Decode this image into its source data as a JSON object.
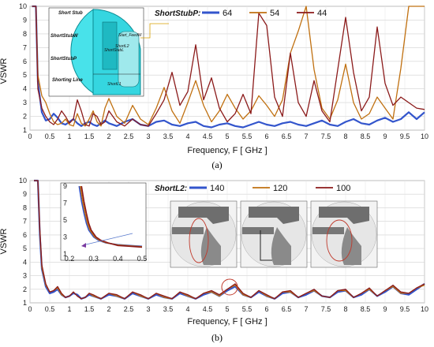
{
  "panels": [
    {
      "label": "(a)",
      "xlabel": "Frequency, F [ GHz ]",
      "ylabel": "VSWR",
      "legend_title": "ShortStubP:",
      "inset_labels": [
        "Short Stub",
        "ShortStubW",
        "ShortStubP",
        "Shorting Line",
        "ShortStubL",
        "ShortL1",
        "ShortL2",
        "Start_FeedW"
      ]
    },
    {
      "label": "(b)",
      "xlabel": "Frequency, F [ GHz ]",
      "ylabel": "VSWR",
      "legend_title": "ShortL2:"
    }
  ],
  "chart_data": [
    {
      "type": "line",
      "xlabel": "Frequency, F [ GHz ]",
      "ylabel": "VSWR",
      "xlim": [
        0,
        10
      ],
      "ylim": [
        1,
        10
      ],
      "x_ticks": [
        "0",
        "0.5",
        "1",
        "1.5",
        "2",
        "2.5",
        "3",
        "3.5",
        "4",
        "4.5",
        "5",
        "5.5",
        "6",
        "6.5",
        "7",
        "7.5",
        "8",
        "8.5",
        "9",
        "9.5",
        "10"
      ],
      "y_ticks": [
        "1",
        "2",
        "3",
        "4",
        "5",
        "6",
        "7",
        "8",
        "9",
        "10"
      ],
      "legend_title": "ShortStubP:",
      "legend_position": "top",
      "series": [
        {
          "name": "64",
          "color": "#3355cc",
          "x": [
            0.05,
            0.15,
            0.2,
            0.3,
            0.4,
            0.5,
            0.6,
            0.7,
            0.8,
            0.9,
            1.0,
            1.1,
            1.2,
            1.3,
            1.4,
            1.5,
            1.6,
            1.7,
            1.8,
            1.9,
            2.0,
            2.2,
            2.4,
            2.6,
            2.8,
            3.0,
            3.2,
            3.4,
            3.6,
            3.8,
            4.0,
            4.2,
            4.4,
            4.6,
            4.8,
            5.0,
            5.2,
            5.4,
            5.6,
            5.8,
            6.0,
            6.2,
            6.4,
            6.6,
            6.8,
            7.0,
            7.2,
            7.4,
            7.6,
            7.8,
            8.0,
            8.2,
            8.4,
            8.6,
            8.8,
            9.0,
            9.2,
            9.4,
            9.6,
            9.8,
            10.0
          ],
          "y": [
            10,
            10,
            4.5,
            2.3,
            1.7,
            1.8,
            2.2,
            1.9,
            1.5,
            1.4,
            1.6,
            1.8,
            1.5,
            1.3,
            1.5,
            1.6,
            1.4,
            1.3,
            1.5,
            1.7,
            1.5,
            1.3,
            1.6,
            1.8,
            1.4,
            1.3,
            1.6,
            1.7,
            1.4,
            1.3,
            1.5,
            1.6,
            1.3,
            1.2,
            1.4,
            1.5,
            1.3,
            1.2,
            1.4,
            1.6,
            1.4,
            1.3,
            1.5,
            1.6,
            1.4,
            1.3,
            1.5,
            1.7,
            1.4,
            1.3,
            1.6,
            1.8,
            1.5,
            1.4,
            1.7,
            1.9,
            1.6,
            1.8,
            2.3,
            1.8,
            2.3
          ]
        },
        {
          "name": "54",
          "color": "#c07010",
          "x": [
            0.05,
            0.15,
            0.2,
            0.3,
            0.4,
            0.5,
            0.6,
            0.7,
            0.8,
            0.9,
            1.0,
            1.1,
            1.2,
            1.3,
            1.4,
            1.5,
            1.6,
            1.7,
            1.8,
            1.9,
            2.0,
            2.2,
            2.4,
            2.6,
            2.8,
            3.0,
            3.2,
            3.4,
            3.6,
            3.8,
            4.0,
            4.2,
            4.4,
            4.6,
            4.8,
            5.0,
            5.2,
            5.4,
            5.6,
            5.8,
            6.0,
            6.2,
            6.4,
            6.6,
            6.8,
            7.0,
            7.2,
            7.4,
            7.6,
            7.8,
            8.0,
            8.2,
            8.4,
            8.6,
            8.8,
            9.0,
            9.2,
            9.4,
            9.6,
            9.8,
            10.0
          ],
          "y": [
            10,
            10,
            5.0,
            3.5,
            3.0,
            2.2,
            1.6,
            1.4,
            1.5,
            1.8,
            1.4,
            1.3,
            2.2,
            1.5,
            1.3,
            1.8,
            2.4,
            1.6,
            1.3,
            2.6,
            3.3,
            2.0,
            1.5,
            2.8,
            1.8,
            1.4,
            2.6,
            4.1,
            2.4,
            1.5,
            3.0,
            4.6,
            2.8,
            1.6,
            2.4,
            3.6,
            2.6,
            1.8,
            2.4,
            3.5,
            2.8,
            2.0,
            3.2,
            6.6,
            8.2,
            10,
            5.4,
            2.6,
            1.8,
            3.2,
            5.8,
            3.0,
            1.8,
            2.2,
            3.4,
            2.6,
            1.8,
            5.5,
            10,
            10,
            10
          ]
        },
        {
          "name": "44",
          "color": "#8b1a1a",
          "x": [
            0.05,
            0.15,
            0.2,
            0.3,
            0.4,
            0.5,
            0.6,
            0.7,
            0.8,
            0.9,
            1.0,
            1.1,
            1.2,
            1.3,
            1.4,
            1.5,
            1.6,
            1.7,
            1.8,
            1.9,
            2.0,
            2.2,
            2.4,
            2.6,
            2.8,
            3.0,
            3.2,
            3.4,
            3.6,
            3.8,
            4.0,
            4.2,
            4.4,
            4.6,
            4.8,
            5.0,
            5.2,
            5.4,
            5.6,
            5.8,
            6.0,
            6.2,
            6.4,
            6.6,
            6.8,
            7.0,
            7.2,
            7.4,
            7.6,
            7.8,
            8.0,
            8.2,
            8.4,
            8.6,
            8.8,
            9.0,
            9.2,
            9.4,
            9.6,
            9.8,
            10.0
          ],
          "y": [
            10,
            10,
            4.0,
            2.6,
            2.0,
            1.6,
            1.4,
            1.8,
            2.4,
            2.0,
            1.5,
            1.8,
            3.2,
            2.4,
            1.4,
            1.3,
            2.2,
            2.0,
            1.4,
            1.6,
            2.4,
            1.6,
            1.3,
            1.8,
            1.4,
            1.3,
            2.2,
            3.2,
            5.2,
            2.8,
            3.8,
            7.2,
            3.2,
            4.8,
            2.6,
            1.6,
            2.2,
            3.6,
            2.2,
            9.5,
            8.6,
            3.4,
            2.0,
            6.6,
            3.0,
            2.0,
            4.6,
            2.4,
            1.6,
            5.4,
            9.2,
            5.2,
            2.4,
            3.4,
            8.5,
            4.4,
            2.8,
            3.4,
            3.0,
            2.6,
            2.5
          ]
        }
      ]
    },
    {
      "type": "line",
      "xlabel": "Frequency, F [ GHz ]",
      "ylabel": "VSWR",
      "xlim": [
        0,
        10
      ],
      "ylim": [
        1,
        10
      ],
      "x_ticks": [
        "0",
        "0.5",
        "1",
        "1.5",
        "2",
        "2.5",
        "3",
        "3.5",
        "4",
        "4.5",
        "5",
        "5.5",
        "6",
        "6.5",
        "7",
        "7.5",
        "8",
        "8.5",
        "9",
        "9.5",
        "10"
      ],
      "y_ticks": [
        "1",
        "2",
        "3",
        "4",
        "5",
        "6",
        "7",
        "8",
        "9",
        "10"
      ],
      "legend_title": "ShortL2:",
      "legend_position": "top",
      "series": [
        {
          "name": "140",
          "color": "#3355cc",
          "x": [
            0.1,
            0.2,
            0.25,
            0.3,
            0.4,
            0.5,
            0.6,
            0.7,
            0.8,
            0.9,
            1.0,
            1.1,
            1.2,
            1.3,
            1.4,
            1.5,
            1.6,
            1.8,
            2.0,
            2.2,
            2.4,
            2.6,
            2.8,
            3.0,
            3.2,
            3.4,
            3.6,
            3.8,
            4.0,
            4.2,
            4.4,
            4.6,
            4.8,
            5.0,
            5.2,
            5.4,
            5.6,
            5.8,
            6.0,
            6.2,
            6.4,
            6.6,
            6.8,
            7.0,
            7.2,
            7.4,
            7.6,
            7.8,
            8.0,
            8.2,
            8.4,
            8.6,
            8.8,
            9.0,
            9.2,
            9.4,
            9.6,
            9.8,
            10.0
          ],
          "y": [
            10,
            10,
            6.0,
            3.5,
            2.2,
            1.7,
            1.8,
            2.0,
            1.6,
            1.4,
            1.5,
            1.7,
            1.6,
            1.3,
            1.4,
            1.6,
            1.5,
            1.3,
            1.6,
            1.5,
            1.3,
            1.7,
            1.5,
            1.3,
            1.6,
            1.4,
            1.3,
            1.7,
            1.5,
            1.3,
            1.6,
            1.8,
            1.5,
            1.9,
            2.2,
            1.6,
            1.4,
            1.8,
            1.5,
            1.3,
            1.7,
            1.8,
            1.4,
            1.6,
            1.9,
            1.5,
            1.4,
            1.8,
            1.9,
            1.4,
            1.6,
            2.0,
            1.5,
            1.8,
            2.2,
            1.7,
            1.6,
            2.0,
            2.4
          ]
        },
        {
          "name": "120",
          "color": "#c07010",
          "x": [
            0.1,
            0.2,
            0.25,
            0.3,
            0.4,
            0.5,
            0.6,
            0.7,
            0.8,
            0.9,
            1.0,
            1.1,
            1.2,
            1.3,
            1.4,
            1.5,
            1.6,
            1.8,
            2.0,
            2.2,
            2.4,
            2.6,
            2.8,
            3.0,
            3.2,
            3.4,
            3.6,
            3.8,
            4.0,
            4.2,
            4.4,
            4.6,
            4.8,
            5.0,
            5.2,
            5.4,
            5.6,
            5.8,
            6.0,
            6.2,
            6.4,
            6.6,
            6.8,
            7.0,
            7.2,
            7.4,
            7.6,
            7.8,
            8.0,
            8.2,
            8.4,
            8.6,
            8.8,
            9.0,
            9.2,
            9.4,
            9.6,
            9.8,
            10.0
          ],
          "y": [
            10,
            10,
            6.2,
            3.6,
            2.3,
            1.8,
            1.9,
            2.1,
            1.6,
            1.4,
            1.5,
            1.8,
            1.5,
            1.3,
            1.4,
            1.7,
            1.5,
            1.3,
            1.7,
            1.5,
            1.3,
            1.8,
            1.5,
            1.3,
            1.7,
            1.4,
            1.3,
            1.8,
            1.5,
            1.3,
            1.7,
            1.8,
            1.5,
            2.0,
            2.3,
            1.6,
            1.4,
            1.9,
            1.5,
            1.3,
            1.8,
            1.8,
            1.4,
            1.7,
            1.9,
            1.5,
            1.4,
            1.9,
            1.9,
            1.4,
            1.7,
            2.0,
            1.5,
            1.9,
            2.2,
            1.7,
            1.7,
            2.1,
            2.3
          ]
        },
        {
          "name": "100",
          "color": "#8b1a1a",
          "x": [
            0.1,
            0.2,
            0.25,
            0.3,
            0.4,
            0.5,
            0.6,
            0.7,
            0.8,
            0.9,
            1.0,
            1.1,
            1.2,
            1.3,
            1.4,
            1.5,
            1.6,
            1.8,
            2.0,
            2.2,
            2.4,
            2.6,
            2.8,
            3.0,
            3.2,
            3.4,
            3.6,
            3.8,
            4.0,
            4.2,
            4.4,
            4.6,
            4.8,
            5.0,
            5.2,
            5.4,
            5.6,
            5.8,
            6.0,
            6.2,
            6.4,
            6.6,
            6.8,
            7.0,
            7.2,
            7.4,
            7.6,
            7.8,
            8.0,
            8.2,
            8.4,
            8.6,
            8.8,
            9.0,
            9.2,
            9.4,
            9.6,
            9.8,
            10.0
          ],
          "y": [
            10,
            10,
            6.4,
            3.8,
            2.4,
            1.8,
            1.9,
            2.2,
            1.7,
            1.4,
            1.5,
            1.8,
            1.5,
            1.3,
            1.4,
            1.7,
            1.6,
            1.3,
            1.7,
            1.6,
            1.3,
            1.8,
            1.6,
            1.3,
            1.7,
            1.5,
            1.3,
            1.8,
            1.6,
            1.3,
            1.7,
            1.9,
            1.6,
            2.0,
            2.4,
            1.7,
            1.4,
            1.9,
            1.6,
            1.3,
            1.8,
            1.9,
            1.4,
            1.7,
            2.0,
            1.5,
            1.4,
            1.9,
            2.0,
            1.4,
            1.7,
            2.1,
            1.5,
            1.9,
            2.3,
            1.8,
            1.7,
            2.1,
            2.4
          ]
        }
      ],
      "inset": {
        "xlim": [
          0.2,
          0.5
        ],
        "ylim": [
          1,
          9
        ],
        "x_ticks": [
          "0.2",
          "0.3",
          "0.4",
          "0.5"
        ],
        "y_ticks": [
          "1",
          "3",
          "5",
          "7",
          "9"
        ],
        "series": [
          {
            "name": "140",
            "x": [
              0.24,
              0.25,
              0.26,
              0.27,
              0.28,
              0.3,
              0.32,
              0.35,
              0.4,
              0.45,
              0.5
            ],
            "y": [
              9,
              7.2,
              5.8,
              4.6,
              3.8,
              3.0,
              2.6,
              2.3,
              2.1,
              2.0,
              1.9
            ]
          },
          {
            "name": "120",
            "x": [
              0.245,
              0.255,
              0.265,
              0.275,
              0.285,
              0.305,
              0.325,
              0.355,
              0.4,
              0.45,
              0.5
            ],
            "y": [
              9,
              7.2,
              5.8,
              4.6,
              3.8,
              3.0,
              2.6,
              2.3,
              2.05,
              1.95,
              1.85
            ]
          },
          {
            "name": "100",
            "x": [
              0.25,
              0.26,
              0.27,
              0.28,
              0.29,
              0.31,
              0.33,
              0.36,
              0.4,
              0.45,
              0.5
            ],
            "y": [
              9,
              7.2,
              5.8,
              4.6,
              3.8,
              3.0,
              2.6,
              2.3,
              2.0,
              1.9,
              1.8
            ]
          }
        ]
      }
    }
  ]
}
